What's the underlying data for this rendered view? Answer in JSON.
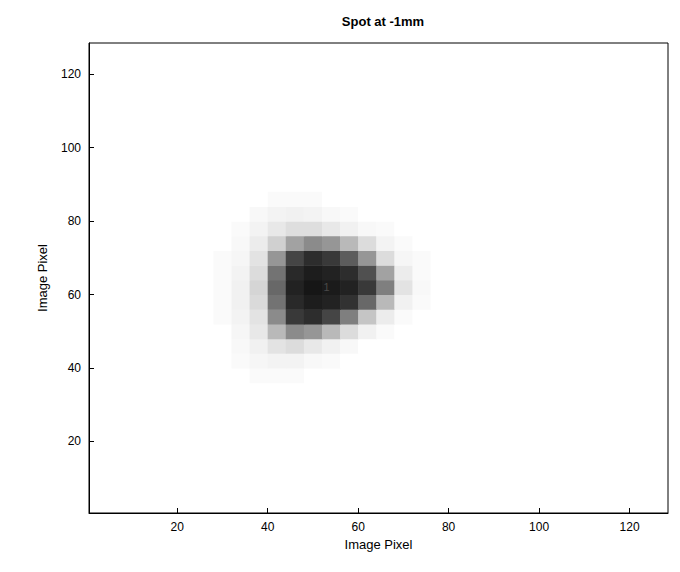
{
  "chart_data": {
    "type": "heatmap",
    "title": "Spot at -1mm",
    "x_label": "Image Pixel",
    "y_label": "Image Pixel",
    "xlim": [
      0.5,
      128.5
    ],
    "ylim": [
      0.5,
      128.5
    ],
    "xticks": [
      20,
      40,
      60,
      80,
      100,
      120
    ],
    "yticks": [
      20,
      40,
      60,
      80,
      100,
      120
    ],
    "grid": false,
    "color_range": [
      0,
      1
    ],
    "x": [
      30,
      34,
      38,
      42,
      46,
      50,
      54,
      58,
      62,
      66,
      70,
      74,
      78
    ],
    "y": [
      38,
      42,
      46,
      50,
      54,
      58,
      62,
      66,
      70,
      74,
      78,
      82,
      86
    ],
    "cells": [
      [
        0,
        0,
        0.02,
        0.02,
        0.02,
        0,
        0,
        0,
        0,
        0,
        0,
        0,
        0
      ],
      [
        0,
        0.02,
        0.04,
        0.05,
        0.05,
        0.03,
        0.02,
        0,
        0,
        0,
        0,
        0,
        0
      ],
      [
        0,
        0.03,
        0.06,
        0.12,
        0.15,
        0.1,
        0.06,
        0.03,
        0,
        0,
        0,
        0,
        0
      ],
      [
        0,
        0.04,
        0.1,
        0.3,
        0.5,
        0.45,
        0.3,
        0.15,
        0.06,
        0.02,
        0,
        0,
        0
      ],
      [
        0.02,
        0.05,
        0.12,
        0.5,
        0.85,
        0.9,
        0.8,
        0.55,
        0.25,
        0.08,
        0.02,
        0,
        0
      ],
      [
        0.02,
        0.06,
        0.16,
        0.6,
        0.92,
        0.97,
        0.95,
        0.88,
        0.65,
        0.3,
        0.06,
        0.02,
        0
      ],
      [
        0.02,
        0.06,
        0.18,
        0.65,
        0.95,
        1,
        0.98,
        0.95,
        0.85,
        0.55,
        0.12,
        0.03,
        0
      ],
      [
        0.02,
        0.05,
        0.15,
        0.6,
        0.92,
        0.97,
        0.95,
        0.9,
        0.75,
        0.4,
        0.08,
        0.02,
        0
      ],
      [
        0.02,
        0.04,
        0.12,
        0.45,
        0.8,
        0.9,
        0.85,
        0.7,
        0.45,
        0.15,
        0.04,
        0.02,
        0
      ],
      [
        0,
        0.03,
        0.08,
        0.2,
        0.4,
        0.5,
        0.45,
        0.3,
        0.15,
        0.05,
        0.02,
        0,
        0
      ],
      [
        0,
        0.02,
        0.05,
        0.1,
        0.14,
        0.14,
        0.1,
        0.06,
        0.03,
        0.02,
        0,
        0,
        0
      ],
      [
        0,
        0,
        0.03,
        0.05,
        0.06,
        0.05,
        0.03,
        0.02,
        0,
        0,
        0,
        0,
        0
      ],
      [
        0,
        0,
        0,
        0.02,
        0.02,
        0.02,
        0,
        0,
        0,
        0,
        0,
        0,
        0
      ]
    ],
    "annotations": [
      {
        "text": "1",
        "x": 53,
        "y": 62
      }
    ]
  }
}
